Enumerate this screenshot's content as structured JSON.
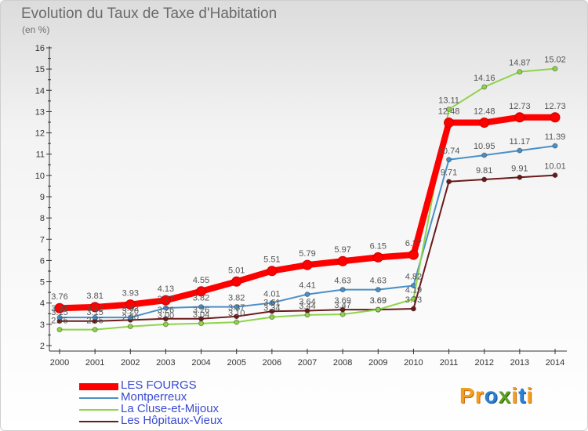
{
  "title": "Evolution du Taux de Taxe d'Habitation",
  "unit": "(en %)",
  "logo": "Proxiti",
  "chart_data": {
    "type": "line",
    "x": [
      "2000",
      "2001",
      "2002",
      "2003",
      "2004",
      "2005",
      "2006",
      "2007",
      "2008",
      "2009",
      "2010",
      "2011",
      "2012",
      "2013",
      "2014"
    ],
    "ylim": [
      2,
      16
    ],
    "yticks": [
      2,
      3,
      4,
      5,
      6,
      7,
      8,
      9,
      10,
      11,
      12,
      13,
      14,
      15,
      16
    ],
    "grid": false,
    "legend_position": "bottom-left",
    "series": [
      {
        "name": "LES FOURGS",
        "color": "#ff0000",
        "values": [
          3.76,
          3.81,
          3.93,
          4.13,
          4.55,
          5.01,
          5.51,
          5.79,
          5.97,
          6.15,
          6.27,
          12.48,
          12.48,
          12.73,
          12.73
        ],
        "labels": [
          "3.76",
          "3.81",
          "3.93",
          "4.13",
          "4.55",
          "5.01",
          "5.51",
          "5.79",
          "5.97",
          "6.15",
          "6.27",
          "12.48",
          "12.48",
          "12.73",
          "12.73"
        ]
      },
      {
        "name": "Montperreux",
        "color": "#4a90c8",
        "values": [
          3.32,
          3.32,
          3.32,
          3.77,
          3.82,
          3.82,
          4.01,
          4.41,
          4.63,
          4.63,
          4.82,
          10.74,
          10.95,
          11.17,
          11.39
        ],
        "labels": [
          "3.32",
          "3.32",
          "3.32",
          "3.77",
          "3.82",
          "3.82",
          "4.01",
          "4.41",
          "4.63",
          "4.63",
          "4.82",
          "10.74",
          "10.95",
          "11.17",
          "11.39"
        ]
      },
      {
        "name": "La Cluse-et-Mijoux",
        "color": "#8ed44a",
        "values": [
          2.75,
          2.75,
          2.9,
          3.0,
          3.04,
          3.1,
          3.34,
          3.44,
          3.47,
          3.69,
          4.19,
          13.11,
          14.16,
          14.87,
          15.02
        ],
        "labels": [
          "2.75",
          "2.75",
          "2.90",
          "3.00",
          "3.04",
          "3.10",
          "3.34",
          "3.44",
          "3.47",
          "3.69",
          "4.19",
          "13.11",
          "14.16",
          "14.87",
          "15.02"
        ]
      },
      {
        "name": "Les Hôpitaux-Vieux",
        "color": "#6a1a1a",
        "values": [
          3.15,
          3.15,
          3.2,
          3.26,
          3.26,
          3.37,
          3.61,
          3.64,
          3.69,
          3.69,
          3.73,
          9.71,
          9.81,
          9.91,
          10.01
        ],
        "labels": [
          "3.15",
          "3.15",
          "3.20",
          "3.26",
          "3.26",
          "3.37",
          "3.61",
          "3.64",
          "3.69",
          "3.69",
          "3.73",
          "9.71",
          "9.81",
          "9.91",
          "10.01"
        ]
      }
    ]
  }
}
